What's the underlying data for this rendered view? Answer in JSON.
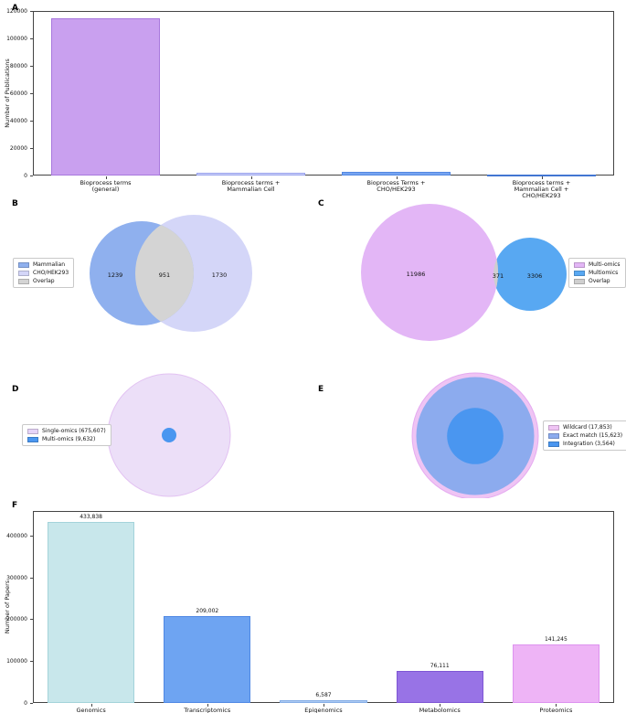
{
  "figure": {
    "background": "#ffffff"
  },
  "panels": {
    "A": {
      "label": "A"
    },
    "B": {
      "label": "B"
    },
    "C": {
      "label": "C"
    },
    "D": {
      "label": "D"
    },
    "E": {
      "label": "E"
    },
    "F": {
      "label": "F"
    }
  },
  "chart_data": [
    {
      "panel": "A",
      "type": "bar",
      "title": "",
      "xlabel": "",
      "ylabel": "Number of Publications",
      "ylim": [
        0,
        120000
      ],
      "yticks": [
        0,
        20000,
        40000,
        60000,
        80000,
        100000,
        120000
      ],
      "grid": false,
      "categories": [
        [
          "Bioprocess terms",
          "(general)"
        ],
        [
          "Bioprocess terms +",
          "Mammalian Cell"
        ],
        [
          "Bioprocess Terms +",
          "CHO/HEK293"
        ],
        [
          "Bioprocess terms +",
          "Mammalian Cell +",
          "CHO/HEK293"
        ]
      ],
      "values": [
        115000,
        2190,
        2681,
        951
      ],
      "bar_colors": [
        "#c9a0ef",
        "#cdd1f7",
        "#76a4f0",
        "#5b8fe8"
      ],
      "bar_edge_colors": [
        "#a878dd",
        "#9aa4ef",
        "#5388e2",
        "#4276d2"
      ]
    },
    {
      "panel": "B",
      "type": "venn",
      "legend_position": "left",
      "legend": [
        {
          "label": "Mammalian",
          "color": "#8fb0ee"
        },
        {
          "label": "CHO/HEK293",
          "color": "#d4d6f8"
        },
        {
          "label": "Overlap",
          "color": "#d4d4d4"
        }
      ],
      "regions": [
        {
          "name": "left-only",
          "value": "1239"
        },
        {
          "name": "overlap",
          "value": "951"
        },
        {
          "name": "right-only",
          "value": "1730"
        }
      ]
    },
    {
      "panel": "C",
      "type": "venn",
      "legend_position": "right",
      "legend": [
        {
          "label": "Multi-omics",
          "color": "#e3b6f6"
        },
        {
          "label": "Multiomics",
          "color": "#58a8f2"
        },
        {
          "label": "Overlap",
          "color": "#cfcfcf"
        }
      ],
      "regions": [
        {
          "name": "left-only",
          "value": "11986"
        },
        {
          "name": "overlap",
          "value": "371"
        },
        {
          "name": "right-only",
          "value": "3306"
        }
      ]
    },
    {
      "panel": "D",
      "type": "nested-circles",
      "legend_position": "left",
      "legend": [
        {
          "label": "Single-omics (675,607)",
          "color": "#e6d4f8"
        },
        {
          "label": "Multi-omics (9,632)",
          "color": "#4a96f0"
        }
      ],
      "circles": [
        {
          "label": "Single-omics",
          "value": 675607,
          "color": "#ecdff8",
          "stroke": "#e2c2f2"
        },
        {
          "label": "Multi-omics",
          "value": 9632,
          "color": "#4a96f0",
          "stroke": ""
        }
      ]
    },
    {
      "panel": "E",
      "type": "nested-circles",
      "legend_position": "right",
      "legend": [
        {
          "label": "Wildcard (17,853)",
          "color": "#efc4f4"
        },
        {
          "label": "Exact match (15,623)",
          "color": "#8cabee"
        },
        {
          "label": "Integration (3,564)",
          "color": "#4a96f0"
        }
      ],
      "circles": [
        {
          "label": "Wildcard",
          "value": 17853,
          "color": "#efc4f4",
          "stroke": "#e5aaf0"
        },
        {
          "label": "Exact match",
          "value": 15623,
          "color": "#8cabee",
          "stroke": ""
        },
        {
          "label": "Integration",
          "value": 3564,
          "color": "#4a96f0",
          "stroke": ""
        }
      ]
    },
    {
      "panel": "F",
      "type": "bar",
      "title": "",
      "xlabel": "",
      "ylabel": "Number of Papers",
      "ylim": [
        0,
        460000
      ],
      "yticks": [
        0,
        100000,
        200000,
        300000,
        400000
      ],
      "grid": false,
      "categories": [
        [
          "Genomics"
        ],
        [
          "Transcriptomics"
        ],
        [
          "Epigenomics"
        ],
        [
          "Metabolomics"
        ],
        [
          "Proteomics"
        ]
      ],
      "values": [
        433838,
        209002,
        6587,
        76111,
        141245
      ],
      "value_labels": [
        "433,838",
        "209,002",
        "6,587",
        "76,111",
        "141,245"
      ],
      "bar_colors": [
        "#c8e7eb",
        "#6ea4f2",
        "#aac9f2",
        "#9873e6",
        "#eeb4f6"
      ],
      "bar_edge_colors": [
        "#a3d3da",
        "#4f88e4",
        "#86aee6",
        "#7e55d4",
        "#dd92ef"
      ]
    }
  ]
}
